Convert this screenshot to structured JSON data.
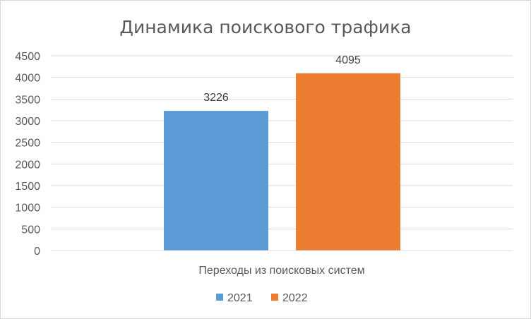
{
  "chart_data": {
    "type": "bar",
    "title": "Динамика поискового трафика",
    "categories": [
      "Переходы из поисковых систем"
    ],
    "series": [
      {
        "name": "2021",
        "values": [
          3226
        ],
        "color": "#5B9BD5"
      },
      {
        "name": "2022",
        "values": [
          4095
        ],
        "color": "#ED7D31"
      }
    ],
    "y_ticks": [
      "0",
      "500",
      "1000",
      "1500",
      "2000",
      "2500",
      "3000",
      "3500",
      "4000",
      "4500"
    ],
    "ylim": [
      0,
      4500
    ],
    "grid": true,
    "legend_position": "bottom"
  }
}
